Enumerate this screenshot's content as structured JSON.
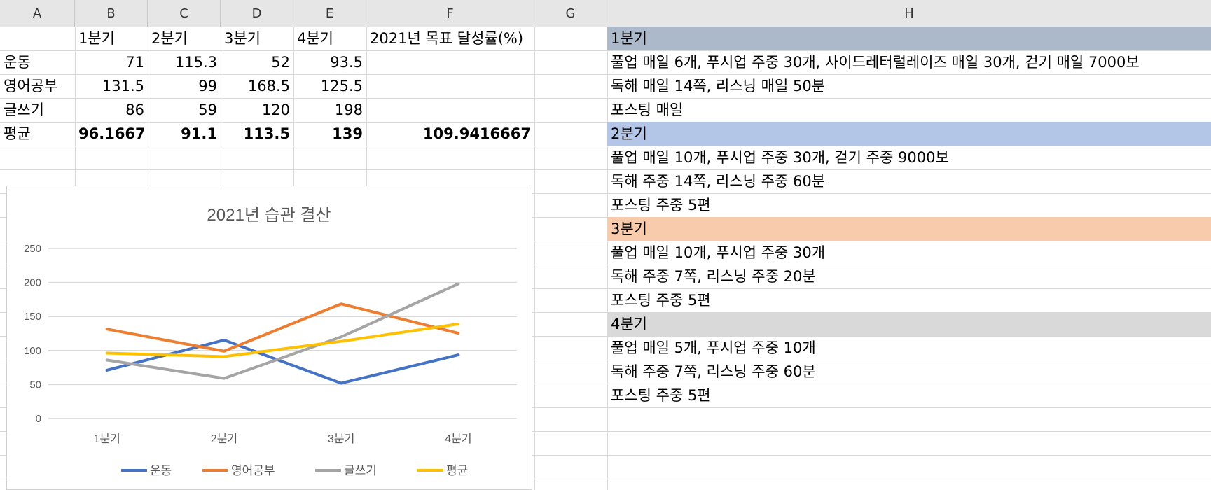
{
  "columns": [
    "A",
    "B",
    "C",
    "D",
    "E",
    "F",
    "G",
    "H"
  ],
  "table": {
    "header": [
      "",
      "1분기",
      "2분기",
      "3분기",
      "4분기",
      "2021년 목표 달성률(%)"
    ],
    "rows": [
      {
        "label": "운동",
        "values": [
          "71",
          "115.3",
          "52",
          "93.5"
        ],
        "goal": ""
      },
      {
        "label": "영어공부",
        "values": [
          "131.5",
          "99",
          "168.5",
          "125.5"
        ],
        "goal": ""
      },
      {
        "label": "글쓰기",
        "values": [
          "86",
          "59",
          "120",
          "198"
        ],
        "goal": ""
      },
      {
        "label": "평균",
        "values": [
          "96.1667",
          "91.1",
          "113.5",
          "139"
        ],
        "goal": "109.9416667"
      }
    ]
  },
  "plans": [
    {
      "quarter": "1분기",
      "color": "#acb9ca",
      "items": [
        "풀업 매일 6개, 푸시업 주중 30개, 사이드레터럴레이즈 매일 30개, 걷기 매일 7000보",
        "독해 매일 14쪽, 리스닝 매일 50분",
        "포스팅 매일"
      ]
    },
    {
      "quarter": "2분기",
      "color": "#b4c6e7",
      "items": [
        "풀업 매일 10개, 푸시업 주중 30개, 걷기 주중 9000보",
        "독해 주중 14쪽, 리스닝 주중 60분",
        "포스팅 주중 5편"
      ]
    },
    {
      "quarter": "3분기",
      "color": "#f8cbad",
      "items": [
        "풀업 매일 10개, 푸시업 주중 30개",
        "독해 주중 7쪽, 리스닝 주중 20분",
        "포스팅 주중 5편"
      ]
    },
    {
      "quarter": "4분기",
      "color": "#d9d9d9",
      "items": [
        "풀업 매일 5개, 푸시업 주중 10개",
        "독해 주중 7쪽, 리스닝 주중 60분",
        "포스팅 주중 5편"
      ]
    }
  ],
  "chart_data": {
    "type": "line",
    "title": "2021년 습관 결산",
    "categories": [
      "1분기",
      "2분기",
      "3분기",
      "4분기"
    ],
    "ylim": [
      0,
      250
    ],
    "yticks": [
      0,
      50,
      100,
      150,
      200,
      250
    ],
    "grid": true,
    "legend_position": "bottom",
    "series": [
      {
        "name": "운동",
        "color": "#4472c4",
        "values": [
          71,
          115.3,
          52,
          93.5
        ]
      },
      {
        "name": "영어공부",
        "color": "#ed7d31",
        "values": [
          131.5,
          99,
          168.5,
          125.5
        ]
      },
      {
        "name": "글쓰기",
        "color": "#a5a5a5",
        "values": [
          86,
          59,
          120,
          198
        ]
      },
      {
        "name": "평균",
        "color": "#ffc000",
        "values": [
          96.1667,
          91.1,
          113.5,
          139
        ]
      }
    ]
  }
}
